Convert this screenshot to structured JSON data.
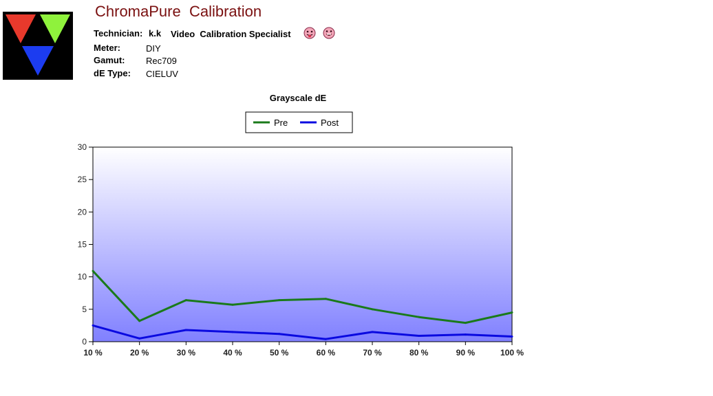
{
  "header": {
    "app_title": "ChromaPure  Calibration",
    "technician_label": "Technician:",
    "technician_value": "k.k",
    "technician_role": "Video  Calibration Specialist",
    "meter_label": "Meter:",
    "meter_value": "DIY",
    "gamut_label": "Gamut:",
    "gamut_value": "Rec709",
    "de_type_label": "dE Type:",
    "de_type_value": "CIELUV"
  },
  "chart_data": {
    "type": "line",
    "title": "Grayscale dE",
    "xlabel": "",
    "ylabel": "",
    "categories": [
      "10 %",
      "20 %",
      "30 %",
      "40 %",
      "50 %",
      "60 %",
      "70 %",
      "80 %",
      "90 %",
      "100 %"
    ],
    "series": [
      {
        "name": "Pre",
        "color": "#1a7a1a",
        "values": [
          10.9,
          3.2,
          6.4,
          5.7,
          6.4,
          6.6,
          5.0,
          3.8,
          2.9,
          4.5
        ]
      },
      {
        "name": "Post",
        "color": "#0a0ae0",
        "values": [
          2.5,
          0.5,
          1.8,
          1.5,
          1.2,
          0.4,
          1.5,
          0.9,
          1.1,
          0.8
        ]
      }
    ],
    "ylim": [
      0,
      30
    ],
    "yticks": [
      0,
      5,
      10,
      15,
      20,
      25,
      30
    ],
    "legend_position": "top-center",
    "grid": false,
    "background_gradient": [
      "#ffffff",
      "#8080ff"
    ]
  }
}
